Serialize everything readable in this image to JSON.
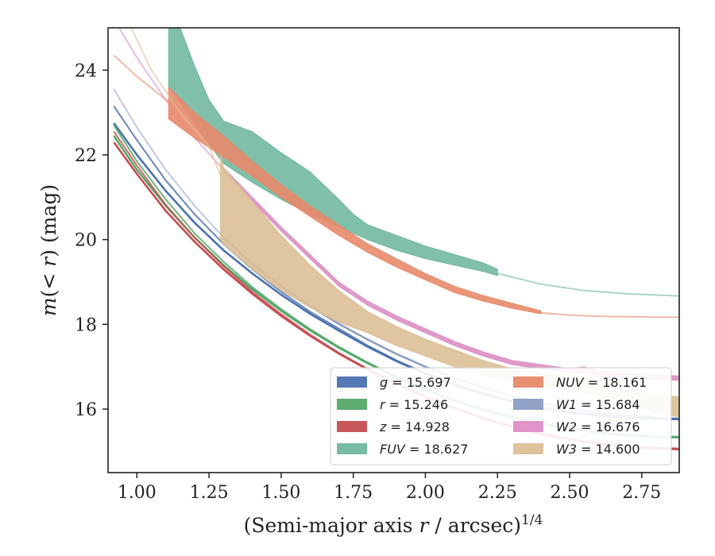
{
  "chart_data": {
    "type": "line",
    "xlabel": "(Semi-major axis r / arcsec)^1/4",
    "ylabel": "m(< r) (mag)",
    "xlim": [
      0.9,
      2.88
    ],
    "ylim": [
      25,
      14.5
    ],
    "y_inverted": true,
    "grid": false,
    "legend_position": "lower-right",
    "x_ticks": [
      "1.00",
      "1.25",
      "1.50",
      "1.75",
      "2.00",
      "2.25",
      "2.50",
      "2.75"
    ],
    "x_tick_values": [
      1.0,
      1.25,
      1.5,
      1.75,
      2.0,
      2.25,
      2.5,
      2.75
    ],
    "y_ticks": [
      "16",
      "18",
      "20",
      "22",
      "24"
    ],
    "y_tick_values": [
      16,
      18,
      20,
      22,
      24
    ],
    "series": [
      {
        "name": "g = 15.697",
        "legend_math": "g",
        "legend_value": "15.697",
        "color": "#4c72b0",
        "kind": "curve",
        "x": [
          0.92,
          1.0,
          1.1,
          1.2,
          1.3,
          1.4,
          1.5,
          1.6,
          1.7,
          1.8,
          1.9,
          2.0,
          2.1,
          2.2,
          2.3,
          2.4,
          2.5,
          2.6,
          2.7,
          2.8,
          2.88
        ],
        "y": [
          22.75,
          22.0,
          21.15,
          20.4,
          19.75,
          19.2,
          18.7,
          18.25,
          17.85,
          17.47,
          17.13,
          16.83,
          16.57,
          16.35,
          16.18,
          16.03,
          15.92,
          15.85,
          15.8,
          15.77,
          15.76
        ],
        "lower": [
          23.15,
          22.35,
          21.4,
          20.6,
          19.9,
          19.3,
          18.77,
          18.3,
          17.9,
          17.5,
          17.15,
          16.85,
          16.59,
          16.37,
          16.2,
          16.05,
          15.94,
          15.87,
          15.82,
          15.79,
          15.78
        ],
        "bright": true
      },
      {
        "name": "r = 15.246",
        "legend_math": "r",
        "legend_value": "15.246",
        "color": "#55a868",
        "kind": "curve",
        "x": [
          0.92,
          1.0,
          1.1,
          1.2,
          1.3,
          1.4,
          1.5,
          1.6,
          1.7,
          1.8,
          1.9,
          2.0,
          2.1,
          2.2,
          2.3,
          2.4,
          2.5,
          2.6,
          2.7,
          2.8,
          2.88
        ],
        "y": [
          22.45,
          21.65,
          20.8,
          20.05,
          19.4,
          18.83,
          18.32,
          17.86,
          17.45,
          17.08,
          16.75,
          16.46,
          16.2,
          15.98,
          15.8,
          15.65,
          15.53,
          15.44,
          15.38,
          15.34,
          15.33
        ],
        "lower": [
          22.7,
          21.85,
          20.95,
          20.15,
          19.48,
          18.88,
          18.36,
          17.89,
          17.47,
          17.1,
          16.77,
          16.48,
          16.22,
          16.0,
          15.82,
          15.67,
          15.55,
          15.46,
          15.4,
          15.36,
          15.35
        ],
        "bright": true
      },
      {
        "name": "z = 14.928",
        "legend_math": "z",
        "legend_value": "14.928",
        "color": "#c44e52",
        "kind": "curve",
        "x": [
          0.92,
          1.0,
          1.1,
          1.2,
          1.3,
          1.4,
          1.5,
          1.6,
          1.7,
          1.8,
          1.9,
          2.0,
          2.1,
          2.2,
          2.3,
          2.4,
          2.5,
          2.6,
          2.7,
          2.8,
          2.88
        ],
        "y": [
          22.3,
          21.55,
          20.68,
          19.95,
          19.3,
          18.72,
          18.2,
          17.73,
          17.31,
          16.93,
          16.59,
          16.29,
          16.02,
          15.78,
          15.58,
          15.41,
          15.28,
          15.18,
          15.11,
          15.07,
          15.05
        ],
        "lower": [
          22.55,
          21.75,
          20.82,
          20.05,
          19.37,
          18.77,
          18.24,
          17.76,
          17.33,
          16.95,
          16.61,
          16.31,
          16.04,
          15.8,
          15.6,
          15.43,
          15.3,
          15.2,
          15.13,
          15.09,
          15.07
        ],
        "bright": true
      },
      {
        "name": "FUV = 18.627",
        "legend_math": "FUV",
        "legend_value": "18.627",
        "color": "#72b8a0",
        "kind": "band",
        "x": [
          1.11,
          1.15,
          1.2,
          1.25,
          1.3,
          1.4,
          1.5,
          1.6,
          1.7,
          1.75,
          1.8,
          1.9,
          2.0,
          2.1,
          2.2,
          2.25
        ],
        "y_upper": [
          23.6,
          23.25,
          22.75,
          22.25,
          21.8,
          21.35,
          20.95,
          20.6,
          20.3,
          20.15,
          20.0,
          19.75,
          19.55,
          19.4,
          19.25,
          19.15
        ],
        "y_lower": [
          25.2,
          25.0,
          24.1,
          23.3,
          22.8,
          22.55,
          22.05,
          21.6,
          20.95,
          20.6,
          20.35,
          20.1,
          19.85,
          19.65,
          19.45,
          19.3
        ],
        "ext_x": [
          2.25,
          2.4,
          2.55,
          2.7,
          2.88
        ],
        "ext_y": [
          19.2,
          18.95,
          18.8,
          18.72,
          18.67
        ]
      },
      {
        "name": "NUV = 18.161",
        "legend_math": "NUV",
        "legend_value": "18.161",
        "color": "#e8896a",
        "kind": "band",
        "x": [
          1.11,
          1.2,
          1.3,
          1.4,
          1.5,
          1.6,
          1.7,
          1.8,
          1.9,
          2.0,
          2.1,
          2.2,
          2.3,
          2.4
        ],
        "y_upper": [
          22.85,
          22.4,
          21.95,
          21.5,
          21.0,
          20.55,
          20.1,
          19.7,
          19.35,
          19.05,
          18.75,
          18.55,
          18.38,
          18.25
        ],
        "y_lower": [
          23.6,
          23.0,
          22.45,
          21.85,
          21.3,
          20.8,
          20.35,
          19.9,
          19.55,
          19.2,
          18.9,
          18.68,
          18.5,
          18.32
        ],
        "ext_x": [
          0.92,
          1.0,
          1.11
        ],
        "ext_y": [
          24.35,
          23.85,
          23.25
        ],
        "ext2_x": [
          2.4,
          2.5,
          2.6,
          2.7,
          2.8,
          2.88
        ],
        "ext2_y": [
          18.27,
          18.22,
          18.19,
          18.18,
          18.17,
          18.17
        ]
      },
      {
        "name": "W1 = 15.684",
        "legend_math": "W1",
        "legend_value": "15.684",
        "color": "#8c9dc4",
        "kind": "curve",
        "x": [
          0.92,
          1.0,
          1.1,
          1.2,
          1.3,
          1.4,
          1.5,
          1.6,
          1.7,
          1.8,
          1.9,
          2.0,
          2.1,
          2.2,
          2.3,
          2.4,
          2.5,
          2.6,
          2.7,
          2.8,
          2.88
        ],
        "y": [
          23.55,
          22.65,
          21.65,
          20.8,
          20.05,
          19.43,
          18.9,
          18.43,
          18.01,
          17.64,
          17.3,
          17.0,
          16.74,
          16.51,
          16.31,
          16.15,
          16.02,
          15.92,
          15.85,
          15.8,
          15.77
        ],
        "fade_until": 1.3
      },
      {
        "name": "W2 = 16.676",
        "legend_math": "W2",
        "legend_value": "16.676",
        "color": "#dd8fc4",
        "kind": "band",
        "x": [
          1.3,
          1.4,
          1.5,
          1.6,
          1.7,
          1.8,
          1.9,
          2.0,
          2.1,
          2.2,
          2.3,
          2.4,
          2.5,
          2.55,
          2.6,
          2.7,
          2.8,
          2.88
        ],
        "y_upper": [
          21.6,
          20.9,
          20.2,
          19.55,
          18.9,
          18.45,
          18.1,
          17.8,
          17.5,
          17.25,
          17.05,
          16.95,
          16.85,
          16.85,
          16.75,
          16.72,
          16.7,
          16.68
        ],
        "y_lower": [
          21.7,
          21.0,
          20.3,
          19.65,
          19.0,
          18.55,
          18.2,
          17.9,
          17.6,
          17.35,
          17.15,
          17.05,
          16.95,
          17.0,
          16.9,
          16.85,
          16.8,
          16.78
        ],
        "ext_x": [
          0.92,
          1.0,
          1.1,
          1.2,
          1.3
        ],
        "ext_y": [
          25.2,
          24.3,
          23.3,
          22.4,
          21.65
        ]
      },
      {
        "name": "W3 = 14.600",
        "legend_math": "W3",
        "legend_value": "14.600",
        "color": "#dbbf96",
        "kind": "band",
        "x": [
          1.29,
          1.3,
          1.4,
          1.5,
          1.6,
          1.7,
          1.8,
          1.9,
          2.0,
          2.1,
          2.2,
          2.3,
          2.4,
          2.5,
          2.6,
          2.7,
          2.8,
          2.88
        ],
        "y_upper": [
          20.0,
          19.9,
          19.3,
          18.8,
          18.4,
          18.05,
          17.8,
          17.5,
          17.25,
          17.0,
          16.8,
          16.65,
          16.55,
          16.45,
          16.3,
          16.15,
          15.9,
          15.82
        ],
        "y_lower": [
          22.0,
          21.7,
          20.9,
          20.1,
          19.4,
          18.8,
          18.3,
          17.95,
          17.65,
          17.4,
          17.15,
          16.95,
          16.85,
          16.8,
          16.75,
          16.5,
          16.3,
          16.3
        ],
        "ext_x": [
          0.98,
          1.05,
          1.15,
          1.25,
          1.29
        ],
        "ext_y": [
          25.0,
          24.0,
          23.0,
          22.2,
          21.5
        ]
      }
    ],
    "legend_layout": "two-columns"
  }
}
